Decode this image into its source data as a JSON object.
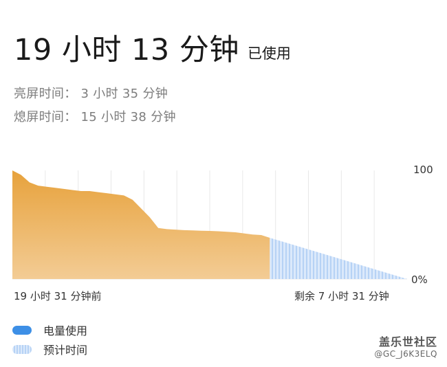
{
  "usage": {
    "total_time": "19 小时 13 分钟",
    "suffix": "已使用"
  },
  "screen_on": "亮屏时间： 3 小时 35 分钟",
  "screen_off": "熄屏时间：  15 小时 38 分钟",
  "chart_data": {
    "type": "area",
    "ylim": [
      0,
      100
    ],
    "ytick_labels": [
      "100",
      "0%"
    ],
    "xlabel_start": "19 小时 31 分钟前",
    "xlabel_end": "剩余 7 小时 31 分钟",
    "series": [
      {
        "name": "电量使用",
        "x": [
          0,
          1,
          2,
          3,
          4,
          5,
          6,
          7,
          8,
          9,
          10,
          11,
          12,
          13,
          14,
          15,
          16,
          17,
          18,
          19,
          20,
          21,
          22,
          23,
          24,
          25,
          26,
          27,
          28,
          29,
          30
        ],
        "values": [
          100,
          96,
          89,
          86,
          85,
          84,
          83,
          82,
          81,
          81,
          80,
          79,
          78,
          77,
          73,
          65,
          57,
          47,
          46,
          45.5,
          45,
          44.8,
          44.5,
          44.3,
          44,
          43.5,
          43,
          42,
          41,
          40.5,
          38
        ]
      },
      {
        "name": "预计时间",
        "x": [
          30,
          46
        ],
        "values": [
          38,
          0
        ]
      }
    ],
    "colors": {
      "usage_top": "#e7a23c",
      "usage_bottom": "#f3cc95",
      "estimate_light": "#dbe9fb",
      "estimate_dark": "#b6d2f5",
      "grid": "#e8e8e8"
    },
    "grid": true
  },
  "legend": {
    "usage_label": "电量使用",
    "estimate_label": "预计时间"
  },
  "watermark": {
    "title": "盖乐世社区",
    "user": "@GC_J6K3ELQ"
  }
}
